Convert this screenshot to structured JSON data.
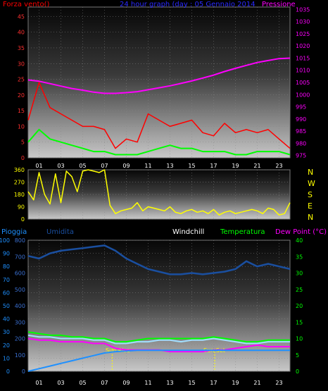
{
  "chart_data": [
    {
      "type": "line",
      "title": "24 hour graph (day : 05 Gennaio 2014",
      "left_label": "Forza vento()",
      "right_label": "Pressione",
      "x_ticks": [
        "01",
        "03",
        "05",
        "07",
        "09",
        "11",
        "13",
        "15",
        "17",
        "19",
        "21",
        "23"
      ],
      "left_ticks": [
        "0",
        "5",
        "10",
        "15",
        "20",
        "25",
        "30",
        "35",
        "40",
        "45"
      ],
      "right_ticks": [
        "975",
        "980",
        "985",
        "990",
        "995",
        "1000",
        "1005",
        "1010",
        "1015",
        "1020",
        "1025",
        "1030",
        "1035"
      ],
      "left_range": [
        0,
        48
      ],
      "right_range": [
        974,
        1036
      ],
      "series": [
        {
          "key": "gust",
          "color": "#ff0000",
          "x": [
            0,
            1,
            2,
            3,
            4,
            5,
            6,
            7,
            8,
            9,
            10,
            11,
            12,
            13,
            14,
            15,
            16,
            17,
            18,
            19,
            20,
            21,
            22,
            23,
            24
          ],
          "y": [
            12,
            24,
            16,
            14,
            12,
            10,
            10,
            9,
            3,
            6,
            5,
            14,
            12,
            10,
            11,
            12,
            8,
            7,
            11,
            8,
            9,
            8,
            9,
            6,
            3
          ]
        },
        {
          "key": "avg",
          "color": "#00ff00",
          "x": [
            0,
            1,
            2,
            3,
            4,
            5,
            6,
            7,
            8,
            9,
            10,
            11,
            12,
            13,
            14,
            15,
            16,
            17,
            18,
            19,
            20,
            21,
            22,
            23,
            24
          ],
          "y": [
            5,
            9,
            6,
            5,
            4,
            3,
            2,
            2,
            1,
            1,
            1,
            2,
            3,
            4,
            3,
            3,
            2,
            2,
            2,
            1,
            1,
            2,
            2,
            2,
            1
          ]
        },
        {
          "key": "pressure",
          "color": "#ff00ff",
          "x": [
            0,
            1,
            2,
            3,
            4,
            5,
            6,
            7,
            8,
            9,
            10,
            11,
            12,
            13,
            14,
            15,
            16,
            17,
            18,
            19,
            20,
            21,
            22,
            23,
            24
          ],
          "y": [
            1006,
            1005.5,
            1004.5,
            1003.5,
            1002.5,
            1001.8,
            1001,
            1000.5,
            1000.5,
            1000.8,
            1001.2,
            1002,
            1002.8,
            1003.6,
            1004.6,
            1005.6,
            1006.8,
            1008,
            1009.5,
            1010.8,
            1012,
            1013.2,
            1014,
            1014.8,
            1015
          ]
        }
      ]
    },
    {
      "type": "line",
      "y_ticks": [
        "0",
        "90",
        "180",
        "270",
        "360"
      ],
      "compass_labels": [
        "N",
        "W",
        "S",
        "E",
        "N"
      ],
      "y_range": [
        0,
        360
      ],
      "series": [
        {
          "key": "direction",
          "color": "#ffff00",
          "x": [
            0,
            0.5,
            1,
            1.5,
            2,
            2.5,
            3,
            3.5,
            4,
            4.5,
            5,
            5.5,
            6,
            6.5,
            7,
            7.5,
            8,
            8.5,
            9,
            9.5,
            10,
            10.5,
            11,
            11.5,
            12,
            12.5,
            13,
            13.5,
            14,
            14.5,
            15,
            15.5,
            16,
            16.5,
            17,
            17.5,
            18,
            18.5,
            19,
            19.5,
            20,
            20.5,
            21,
            21.5,
            22,
            22.5,
            23,
            23.5,
            24
          ],
          "y": [
            200,
            140,
            340,
            180,
            110,
            330,
            120,
            350,
            310,
            200,
            350,
            360,
            350,
            340,
            360,
            100,
            40,
            60,
            70,
            80,
            120,
            60,
            90,
            80,
            70,
            60,
            90,
            50,
            40,
            60,
            70,
            50,
            60,
            40,
            70,
            30,
            50,
            60,
            40,
            50,
            60,
            70,
            60,
            40,
            80,
            70,
            30,
            40,
            120
          ]
        }
      ]
    },
    {
      "type": "line",
      "labels": {
        "rain": "Pioggia",
        "humidity": "Umidita",
        "windchill": "Windchill",
        "temperature": "Temperatura",
        "dewpoint": "Dew Point (°C)"
      },
      "x_ticks": [
        "01",
        "03",
        "05",
        "07",
        "09",
        "11",
        "13",
        "15",
        "17",
        "19",
        "21",
        "23"
      ],
      "left_ticks": [
        "0",
        "10",
        "20",
        "30",
        "40",
        "50",
        "60",
        "70",
        "80",
        "90",
        "100"
      ],
      "humidity_ticks": [
        "0",
        "100",
        "200",
        "300",
        "400",
        "500",
        "600",
        "700",
        "800"
      ],
      "right_ticks": [
        "0",
        "5",
        "10",
        "15",
        "20",
        "25",
        "30",
        "35",
        "40"
      ],
      "left_range": [
        0,
        100
      ],
      "right_range": [
        0,
        40
      ],
      "sun_rise_label": "Sun Rise",
      "sun_set_label": "Sun Set",
      "sun_rise_hour": 7.7,
      "sun_set_hour": 17.1,
      "series": [
        {
          "key": "humidity",
          "color": "#1a4fa0",
          "x": [
            0,
            1,
            2,
            3,
            4,
            5,
            6,
            7,
            8,
            9,
            10,
            11,
            12,
            13,
            14,
            15,
            16,
            17,
            18,
            19,
            20,
            21,
            22,
            23,
            24
          ],
          "y": [
            88,
            86,
            90,
            92,
            93,
            94,
            95,
            96,
            92,
            86,
            82,
            78,
            76,
            74,
            74,
            75,
            74,
            75,
            76,
            78,
            84,
            80,
            82,
            80,
            78
          ]
        },
        {
          "key": "temperature",
          "color": "#00ff00",
          "x": [
            0,
            1,
            2,
            3,
            4,
            5,
            6,
            7,
            8,
            9,
            10,
            11,
            12,
            13,
            14,
            15,
            16,
            17,
            18,
            19,
            20,
            21,
            22,
            23,
            24
          ],
          "y": [
            12,
            11.5,
            11,
            11,
            10.5,
            10.5,
            10,
            10,
            9,
            9,
            9.5,
            10,
            10,
            10,
            10,
            10,
            10,
            10.5,
            10,
            9.5,
            9,
            9,
            9.5,
            9.5,
            9.5
          ]
        },
        {
          "key": "windchill",
          "color": "#a0e0ff",
          "x": [
            0,
            1,
            2,
            3,
            4,
            5,
            6,
            7,
            8,
            9,
            10,
            11,
            12,
            13,
            14,
            15,
            16,
            17,
            18,
            19,
            20,
            21,
            22,
            23,
            24
          ],
          "y": [
            11,
            10.5,
            10.5,
            10,
            10,
            10,
            9.5,
            9.5,
            8.5,
            8.5,
            9,
            9,
            9.5,
            9.5,
            9,
            9.5,
            9.5,
            10,
            9.5,
            9,
            8.5,
            8.5,
            9,
            9,
            9
          ]
        },
        {
          "key": "dewpoint",
          "color": "#ff00ff",
          "x": [
            0,
            1,
            2,
            3,
            4,
            5,
            6,
            7,
            8,
            9,
            10,
            11,
            12,
            13,
            14,
            15,
            16,
            17,
            18,
            19,
            20,
            21,
            22,
            23,
            24
          ],
          "y": [
            10,
            9.5,
            9.5,
            9,
            9,
            9,
            8.5,
            8.5,
            7,
            6.5,
            6.5,
            6.5,
            6.5,
            6,
            6,
            6,
            6,
            6.5,
            6.5,
            7,
            7.5,
            8,
            7.5,
            7.5,
            7.5
          ]
        },
        {
          "key": "rain",
          "color": "#1e90ff",
          "x": [
            0,
            1,
            2,
            3,
            4,
            5,
            6,
            7,
            8,
            9,
            10,
            11,
            12,
            13,
            14,
            15,
            16,
            17,
            18,
            19,
            20,
            21,
            22,
            23,
            24
          ],
          "y": [
            0,
            2,
            4,
            6,
            8,
            10,
            12,
            14,
            15,
            15.5,
            16,
            16,
            16,
            16,
            16,
            16,
            16,
            16,
            16,
            16,
            16,
            16,
            16,
            16,
            16
          ]
        }
      ]
    }
  ]
}
